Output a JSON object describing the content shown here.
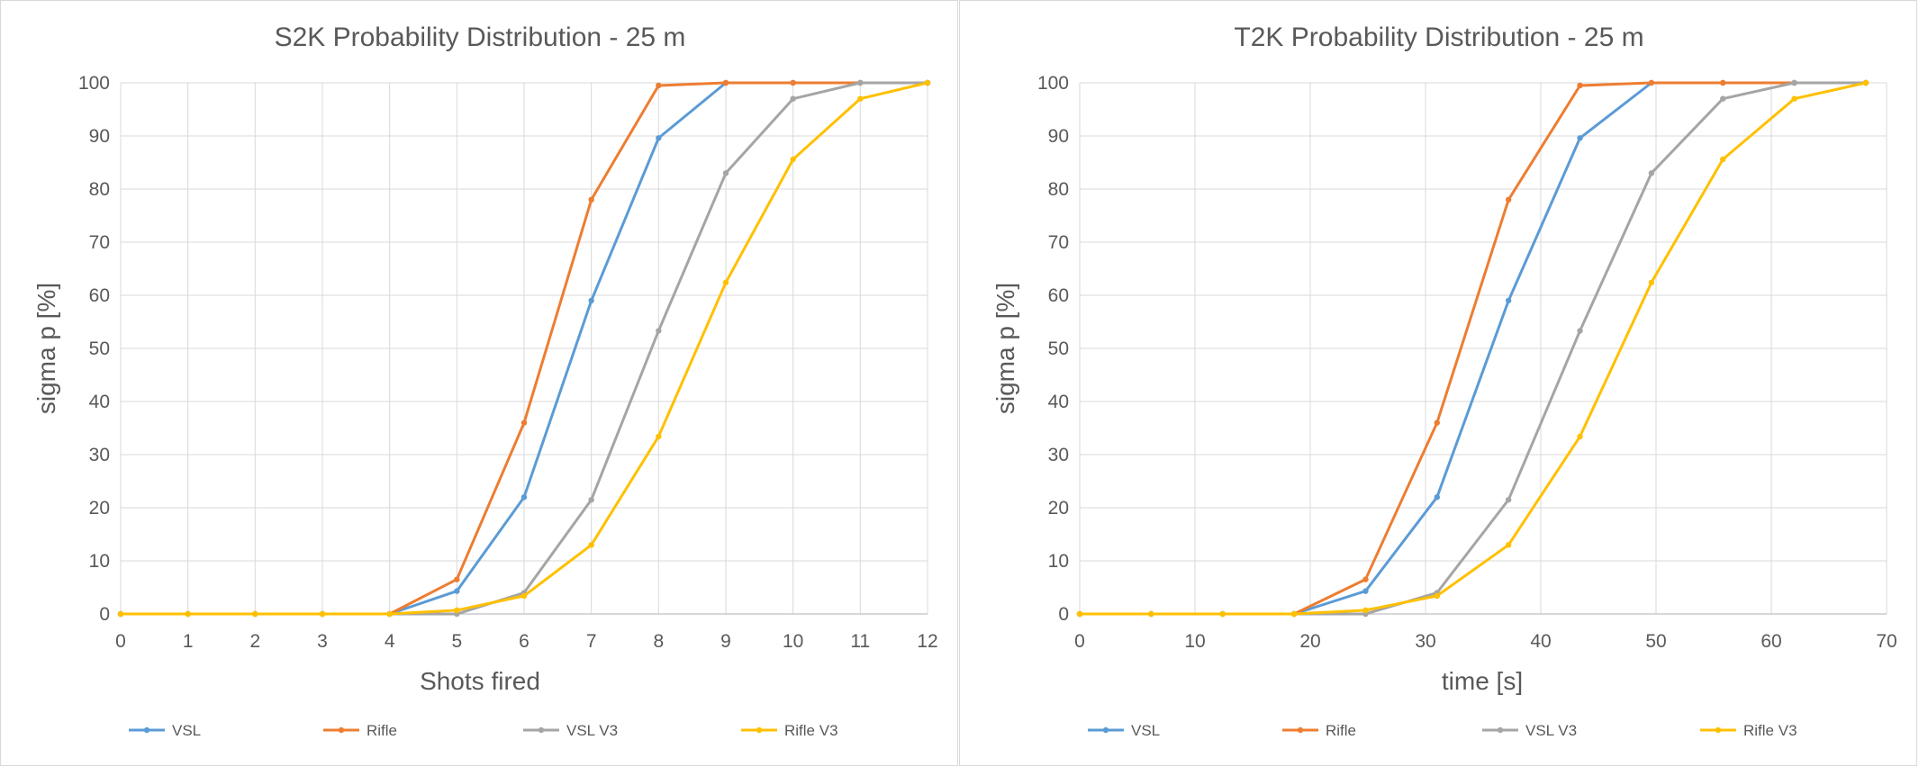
{
  "charts": [
    {
      "title": "S2K Probability Distribution - 25 m",
      "xlabel": "Shots fired",
      "ylabel": "sigma p [%]"
    },
    {
      "title": "T2K Probability Distribution - 25 m",
      "xlabel": "time [s]",
      "ylabel": "sigma p [%]"
    }
  ],
  "chart_data": [
    {
      "type": "line",
      "title": "S2K Probability Distribution - 25 m",
      "xlabel": "Shots fired",
      "ylabel": "sigma p [%]",
      "xlim": [
        0,
        12
      ],
      "ylim": [
        0,
        100
      ],
      "x_ticks": [
        0,
        1,
        2,
        3,
        4,
        5,
        6,
        7,
        8,
        9,
        10,
        11,
        12
      ],
      "y_ticks": [
        0,
        10,
        20,
        30,
        40,
        50,
        60,
        70,
        80,
        90,
        100
      ],
      "grid": true,
      "legend_position": "bottom",
      "series": [
        {
          "name": "VSL",
          "color": "#5b9bd5",
          "x": [
            0,
            1,
            2,
            3,
            4,
            5,
            6,
            7,
            8,
            9,
            10,
            11,
            12
          ],
          "y": [
            0,
            0,
            0,
            0,
            0,
            4.3,
            22,
            59,
            89.6,
            100,
            100,
            100,
            100
          ]
        },
        {
          "name": "Rifle",
          "color": "#ed7d31",
          "x": [
            0,
            1,
            2,
            3,
            4,
            5,
            6,
            7,
            8,
            9,
            10,
            11,
            12
          ],
          "y": [
            0,
            0,
            0,
            0,
            0,
            6.5,
            36,
            78,
            99.5,
            100,
            100,
            100,
            100
          ]
        },
        {
          "name": "VSL V3",
          "color": "#a5a5a5",
          "x": [
            0,
            1,
            2,
            3,
            4,
            5,
            6,
            7,
            8,
            9,
            10,
            11,
            12
          ],
          "y": [
            0,
            0,
            0,
            0,
            0,
            0,
            4,
            21.5,
            53.3,
            83,
            97,
            100,
            100
          ]
        },
        {
          "name": "Rifle V3",
          "color": "#ffc000",
          "x": [
            0,
            1,
            2,
            3,
            4,
            5,
            6,
            7,
            8,
            9,
            10,
            11,
            12
          ],
          "y": [
            0,
            0,
            0,
            0,
            0,
            0.7,
            3.4,
            13,
            33.4,
            62.4,
            85.6,
            97,
            100
          ]
        }
      ]
    },
    {
      "type": "line",
      "title": "T2K Probability Distribution - 25 m",
      "xlabel": "time [s]",
      "ylabel": "sigma p [%]",
      "xlim": [
        0,
        70
      ],
      "ylim": [
        0,
        100
      ],
      "x_ticks": [
        0,
        10,
        20,
        30,
        40,
        50,
        60,
        70
      ],
      "y_ticks": [
        0,
        10,
        20,
        30,
        40,
        50,
        60,
        70,
        80,
        90,
        100
      ],
      "grid": true,
      "legend_position": "bottom",
      "series": [
        {
          "name": "VSL",
          "color": "#5b9bd5",
          "x": [
            0,
            6.2,
            12.4,
            18.6,
            24.8,
            31,
            37.2,
            43.4,
            49.6,
            55.8,
            62,
            68.2
          ],
          "y": [
            0,
            0,
            0,
            0,
            4.3,
            22,
            59,
            89.6,
            100,
            100,
            100,
            100
          ]
        },
        {
          "name": "Rifle",
          "color": "#ed7d31",
          "x": [
            0,
            6.2,
            12.4,
            18.6,
            24.8,
            31,
            37.2,
            43.4,
            49.6,
            55.8,
            62,
            68.2
          ],
          "y": [
            0,
            0,
            0,
            0,
            6.5,
            36,
            78,
            99.5,
            100,
            100,
            100,
            100
          ]
        },
        {
          "name": "VSL V3",
          "color": "#a5a5a5",
          "x": [
            0,
            6.2,
            12.4,
            18.6,
            24.8,
            31,
            37.2,
            43.4,
            49.6,
            55.8,
            62,
            68.2
          ],
          "y": [
            0,
            0,
            0,
            0,
            0,
            4,
            21.5,
            53.3,
            83,
            97,
            100,
            100
          ]
        },
        {
          "name": "Rifle V3",
          "color": "#ffc000",
          "x": [
            0,
            6.2,
            12.4,
            18.6,
            24.8,
            31,
            37.2,
            43.4,
            49.6,
            55.8,
            62,
            68.2
          ],
          "y": [
            0,
            0,
            0,
            0,
            0.7,
            3.4,
            13,
            33.4,
            62.4,
            85.6,
            97,
            100
          ]
        }
      ]
    }
  ]
}
